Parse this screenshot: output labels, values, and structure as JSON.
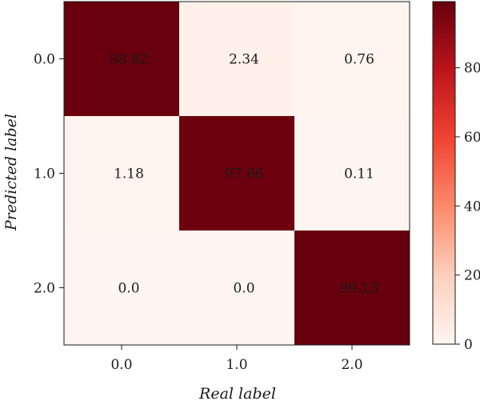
{
  "chart_data": {
    "type": "heatmap",
    "title": "",
    "xlabel": "Real label",
    "ylabel": "Predicted label",
    "x_categories": [
      "0.0",
      "1.0",
      "2.0"
    ],
    "y_categories": [
      "0.0",
      "1.0",
      "2.0"
    ],
    "values": [
      [
        98.82,
        2.34,
        0.76
      ],
      [
        1.18,
        97.66,
        0.11
      ],
      [
        0.0,
        0.0,
        99.13
      ]
    ],
    "value_labels": [
      [
        "98.82",
        "2.34",
        "0.76"
      ],
      [
        "1.18",
        "97.66",
        "0.11"
      ],
      [
        "0.0",
        "0.0",
        "99.13"
      ]
    ],
    "colorbar": {
      "min": 0,
      "max": 99.13,
      "ticks": [
        0,
        20,
        40,
        60,
        80
      ],
      "tick_labels": [
        "0",
        "20",
        "40",
        "60",
        "80"
      ],
      "colors_low_to_high": [
        "#fff5f0",
        "#fdd0bd",
        "#fc8a6a",
        "#f14432",
        "#bc141a",
        "#67000d"
      ]
    },
    "grid": false,
    "legend": "colorbar-right"
  }
}
